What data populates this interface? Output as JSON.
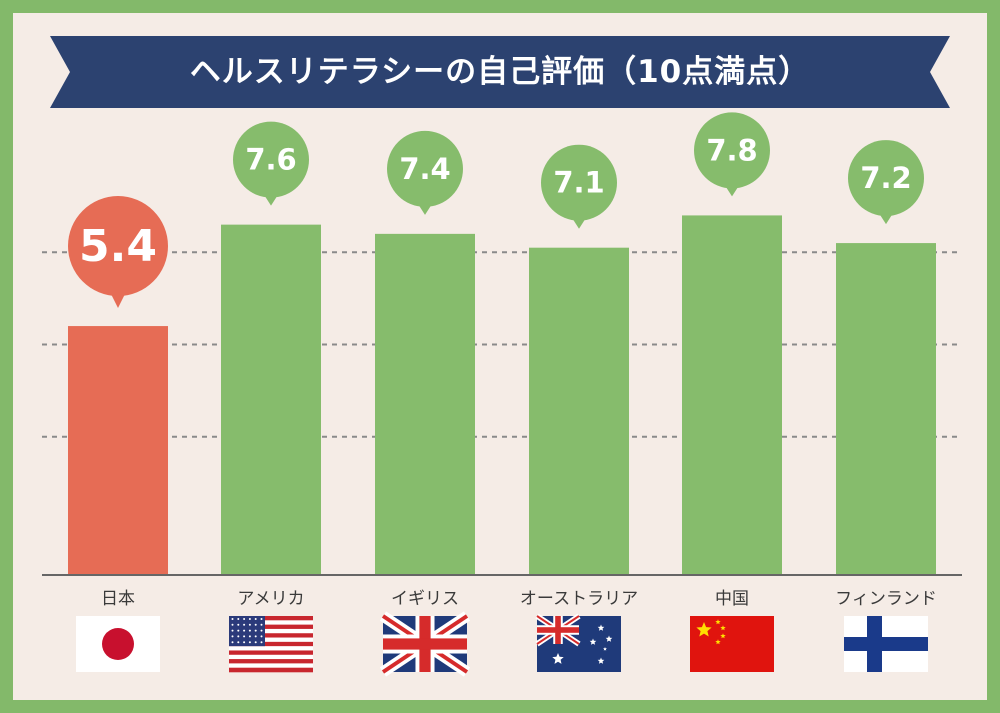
{
  "header": {
    "title": "ヘルスリテラシーの自己評価（10点満点）"
  },
  "colors": {
    "frame": "#83b96a",
    "background": "#f5ece6",
    "banner": "#2c4270",
    "bar_default": "#86bc6c",
    "bar_highlight": "#e66c55",
    "grid": "#8a8a8a"
  },
  "chart_data": {
    "type": "bar",
    "title": "ヘルスリテラシーの自己評価（10点満点）",
    "categories": [
      "日本",
      "アメリカ",
      "イギリス",
      "オーストラリア",
      "中国",
      "フィンランド"
    ],
    "values": [
      5.4,
      7.6,
      7.4,
      7.1,
      7.8,
      7.2
    ],
    "value_labels": [
      "5.4",
      "7.6",
      "7.4",
      "7.1",
      "7.8",
      "7.2"
    ],
    "highlight_index": 0,
    "flags": [
      "japan-flag",
      "usa-flag",
      "uk-flag",
      "australia-flag",
      "china-flag",
      "finland-flag"
    ],
    "ylim": [
      0,
      10
    ],
    "grid": true,
    "xlabel": "",
    "ylabel": ""
  }
}
